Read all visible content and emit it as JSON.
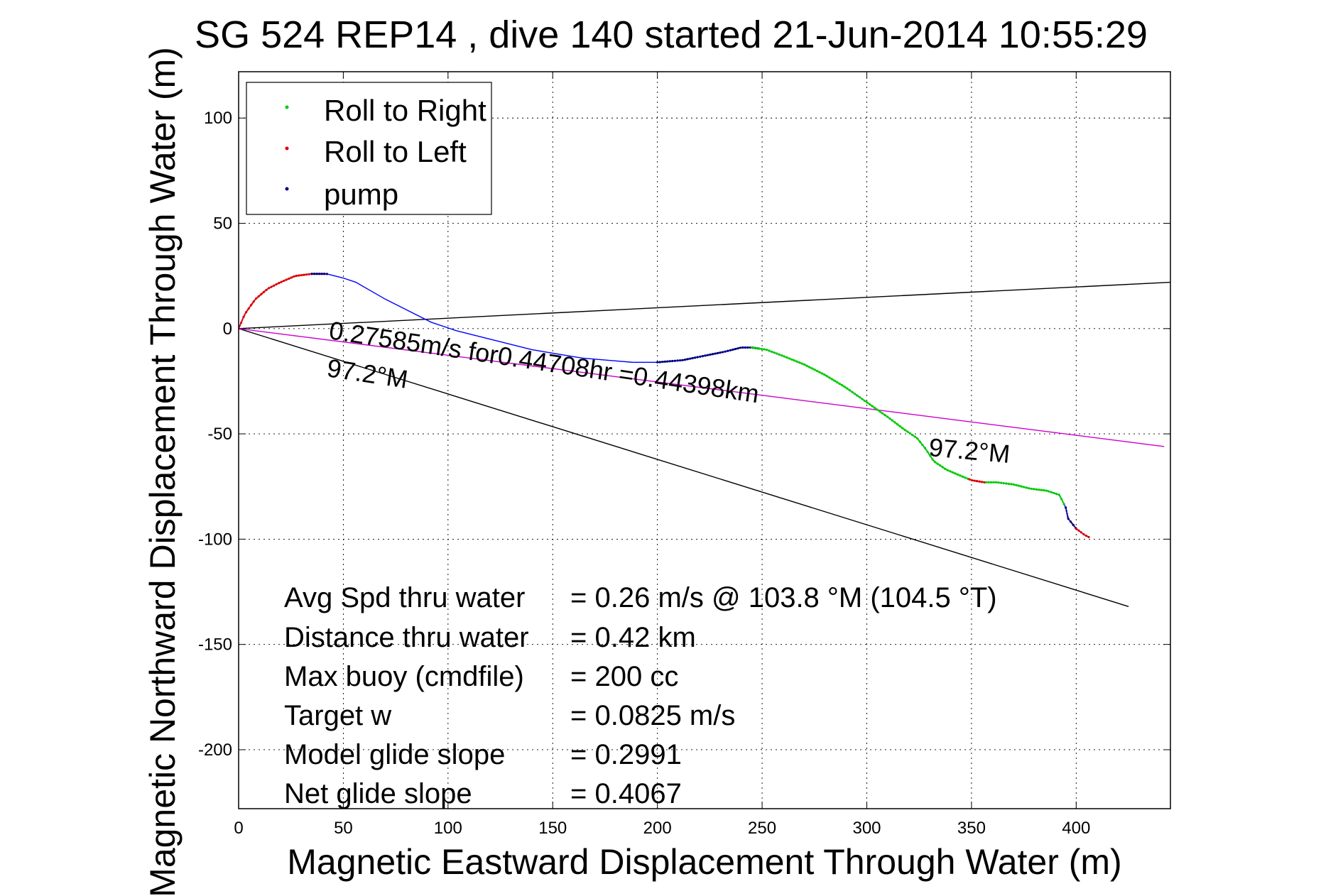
{
  "chart_data": {
    "type": "scatter",
    "title": "SG 524   REP14  , dive 140 started 21-Jun-2014 10:55:29",
    "xlabel": "Magnetic Eastward Displacement Through Water (m)",
    "ylabel": "Magnetic Northward Displacement Through Water (m)",
    "xlim": [
      0,
      445
    ],
    "ylim": [
      -228,
      122
    ],
    "xticks": [
      0,
      50,
      100,
      150,
      200,
      250,
      300,
      350,
      400
    ],
    "yticks": [
      100,
      50,
      0,
      -50,
      -100,
      -150,
      -200
    ],
    "grid": true,
    "legend": {
      "placement": "top-left",
      "entries": [
        {
          "label": "Roll to Right",
          "color": "#00cc00"
        },
        {
          "label": "Roll to Left",
          "color": "#dd0000"
        },
        {
          "label": "pump",
          "color": "#000080"
        }
      ]
    },
    "track": {
      "color": "#0000ff",
      "points": [
        [
          0,
          0
        ],
        [
          3,
          7
        ],
        [
          8,
          14
        ],
        [
          14,
          19
        ],
        [
          20,
          22
        ],
        [
          27,
          25
        ],
        [
          35,
          26
        ],
        [
          42,
          26
        ],
        [
          50,
          24
        ],
        [
          56,
          22
        ],
        [
          63,
          18
        ],
        [
          70,
          14
        ],
        [
          80,
          9
        ],
        [
          92,
          3
        ],
        [
          104,
          -1
        ],
        [
          116,
          -4
        ],
        [
          128,
          -7
        ],
        [
          140,
          -10
        ],
        [
          152,
          -12
        ],
        [
          164,
          -14
        ],
        [
          176,
          -15
        ],
        [
          188,
          -16
        ],
        [
          200,
          -16
        ],
        [
          212,
          -15
        ],
        [
          222,
          -13
        ],
        [
          232,
          -11
        ],
        [
          240,
          -9
        ],
        [
          245,
          -9
        ],
        [
          252,
          -10
        ],
        [
          260,
          -13
        ],
        [
          270,
          -17
        ],
        [
          280,
          -22
        ],
        [
          290,
          -28
        ],
        [
          300,
          -35
        ],
        [
          310,
          -42
        ],
        [
          318,
          -48
        ],
        [
          324,
          -52
        ],
        [
          328,
          -57
        ],
        [
          332,
          -63
        ],
        [
          338,
          -67
        ],
        [
          345,
          -70
        ],
        [
          350,
          -72
        ],
        [
          356,
          -73
        ],
        [
          362,
          -73
        ],
        [
          370,
          -74
        ],
        [
          378,
          -76
        ],
        [
          386,
          -77
        ],
        [
          392,
          -79
        ],
        [
          395,
          -85
        ],
        [
          396,
          -90
        ],
        [
          400,
          -95
        ],
        [
          404,
          -98
        ],
        [
          406,
          -99
        ]
      ]
    },
    "segments": [
      {
        "type": "roll_left",
        "color": "#dd0000",
        "from_x": 0,
        "to_x": 42
      },
      {
        "type": "pump",
        "color": "#000080",
        "from_x": 35,
        "to_x": 43
      },
      {
        "type": "pump",
        "color": "#000080",
        "from_x": 200,
        "to_x": 248
      },
      {
        "type": "roll_right",
        "color": "#00cc00",
        "from_x": 245,
        "to_x": 349
      },
      {
        "type": "roll_left",
        "color": "#dd0000",
        "from_x": 349,
        "to_x": 357
      },
      {
        "type": "roll_right",
        "color": "#00cc00",
        "from_x": 357,
        "to_x": 395
      },
      {
        "type": "pump",
        "color": "#000080",
        "from_x": 395,
        "to_x": 400
      },
      {
        "type": "roll_left",
        "color": "#dd0000",
        "from_x": 400,
        "to_x": 406
      }
    ],
    "reference_lines": [
      {
        "name": "line-upper",
        "color": "#000000",
        "points": [
          [
            0,
            0
          ],
          [
            445,
            22
          ]
        ]
      },
      {
        "name": "line-lower",
        "color": "#000000",
        "points": [
          [
            0,
            0
          ],
          [
            425,
            -132
          ]
        ]
      },
      {
        "name": "line-heading",
        "color": "#cc00cc",
        "points": [
          [
            0,
            0
          ],
          [
            442,
            -56
          ]
        ]
      }
    ],
    "annotations": {
      "speed_text": "0.27585m/s for0.44708hr =0.44398km",
      "heading_left": "97.2°M",
      "heading_right": "97.2°M"
    },
    "stats": [
      {
        "label": "Avg Spd thru water",
        "value": "=  0.26 m/s @ 103.8 °M (104.5 °T)"
      },
      {
        "label": "Distance thru water",
        "value": "=  0.42 km"
      },
      {
        "label": "Max buoy (cmdfile)",
        "value": "= 200 cc"
      },
      {
        "label": "Target w",
        "value": "= 0.0825 m/s"
      },
      {
        "label": "Model glide slope",
        "value": "= 0.2991"
      },
      {
        "label": "Net glide slope",
        "value": "= 0.4067"
      }
    ]
  }
}
